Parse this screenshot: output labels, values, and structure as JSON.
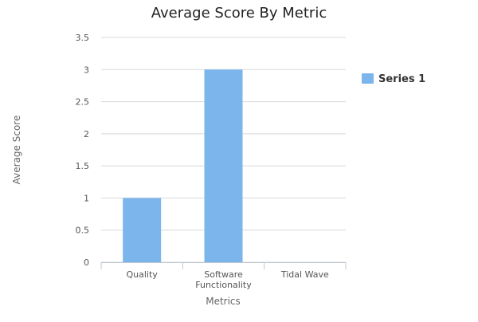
{
  "chart_data": {
    "type": "bar",
    "title": "Average Score By Metric",
    "xlabel": "Metrics",
    "ylabel": "Average Score",
    "categories": [
      "Quality",
      "Software Functionality",
      "Tidal Wave"
    ],
    "category_lines": [
      [
        "Quality"
      ],
      [
        "Software",
        "Functionality"
      ],
      [
        "Tidal Wave"
      ]
    ],
    "series": [
      {
        "name": "Series 1",
        "values": [
          1,
          3,
          0
        ],
        "color": "#7cb5ec"
      }
    ],
    "ylim": [
      0,
      3.5
    ],
    "yticks": [
      "0",
      "0.5",
      "1",
      "1.5",
      "2",
      "2.5",
      "3",
      "3.5"
    ],
    "grid": true,
    "legend_position": "right"
  }
}
